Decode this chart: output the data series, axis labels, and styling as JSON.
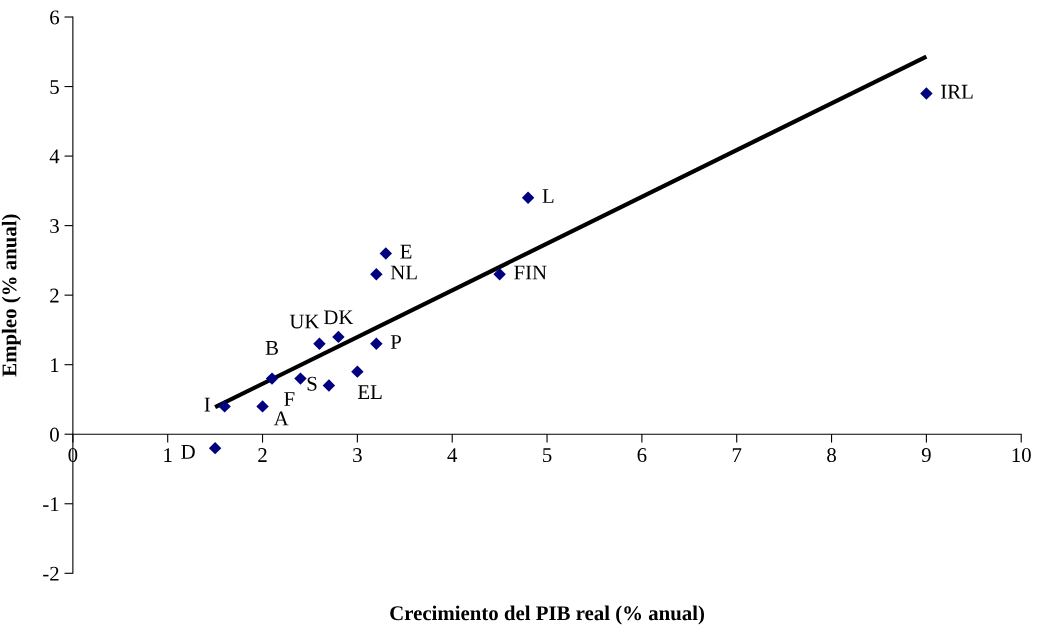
{
  "chart_data": {
    "type": "scatter",
    "xlabel": "Crecimiento del PIB real (% anual)",
    "ylabel": "Empleo (% anual)",
    "xlim": [
      0,
      10
    ],
    "ylim": [
      -2,
      6
    ],
    "xticks": [
      0,
      1,
      2,
      3,
      4,
      5,
      6,
      7,
      8,
      9,
      10
    ],
    "yticks": [
      -2,
      -1,
      0,
      1,
      2,
      3,
      4,
      5,
      6
    ],
    "grid": false,
    "legend": false,
    "marker": "diamond",
    "series": [
      {
        "color": "#000080",
        "x": [
          1.5,
          1.6,
          2.0,
          2.1,
          2.4,
          2.7,
          2.6,
          2.8,
          3.0,
          3.2,
          3.2,
          3.3,
          4.5,
          4.8,
          9.0
        ],
        "values": [
          -0.2,
          0.4,
          0.4,
          0.8,
          0.8,
          0.7,
          1.3,
          1.4,
          0.9,
          1.3,
          2.3,
          2.6,
          2.3,
          3.4,
          4.9
        ]
      },
      {
        "type": "line",
        "color": "#000000",
        "x": [
          1.5,
          9.0
        ],
        "values": [
          0.39,
          5.43
        ],
        "marker": "none",
        "line_style": "solid"
      }
    ],
    "annotations": [
      {
        "text": "D",
        "x": 1.5,
        "y": -0.2
      },
      {
        "text": "I",
        "x": 1.6,
        "y": 0.4
      },
      {
        "text": "A",
        "x": 2.0,
        "y": 0.4
      },
      {
        "text": "B",
        "x": 2.1,
        "y": 0.8
      },
      {
        "text": "F",
        "x": 2.4,
        "y": 0.8
      },
      {
        "text": "S",
        "x": 2.7,
        "y": 0.7
      },
      {
        "text": "UK",
        "x": 2.6,
        "y": 1.3
      },
      {
        "text": "DK",
        "x": 2.8,
        "y": 1.4
      },
      {
        "text": "EL",
        "x": 3.0,
        "y": 0.9
      },
      {
        "text": "P",
        "x": 3.2,
        "y": 1.3
      },
      {
        "text": "NL",
        "x": 3.2,
        "y": 2.3
      },
      {
        "text": "E",
        "x": 3.3,
        "y": 2.6
      },
      {
        "text": "FIN",
        "x": 4.5,
        "y": 2.3
      },
      {
        "text": "L",
        "x": 4.8,
        "y": 3.4
      },
      {
        "text": "IRL",
        "x": 9.0,
        "y": 4.9
      }
    ]
  }
}
